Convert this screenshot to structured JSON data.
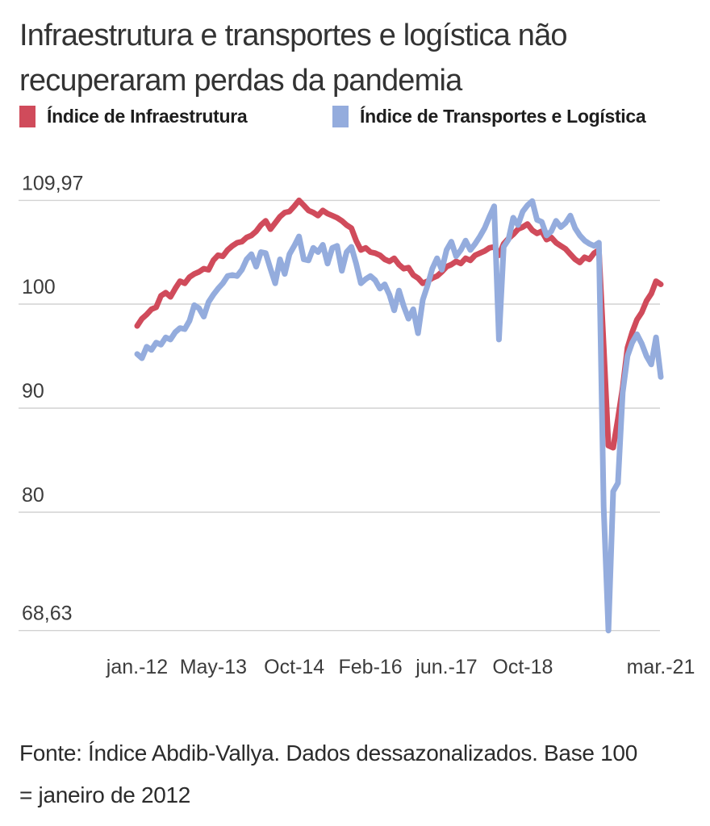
{
  "page": {
    "background": "#ffffff"
  },
  "title": {
    "line1": "Infraestrutura e transportes e logística não",
    "line2": "recuperaram perdas da pandemia"
  },
  "legend": {
    "items": [
      {
        "label": "Índice de Infraestrutura",
        "color": "#d04b5b"
      },
      {
        "label": "Índice de Transportes e Logística",
        "color": "#94acdd"
      }
    ]
  },
  "source": {
    "line1": "Fonte: Índice Abdib-Vallya. Dados dessazonalizados. Base 100",
    "line2": "= janeiro de 2012"
  },
  "chart_data": {
    "type": "line",
    "title": "Infraestrutura e transportes e logística não recuperaram perdas da pandemia",
    "x_unit": "month",
    "x_start": "2012-01",
    "x_end": "2021-03",
    "n_points": 111,
    "grid": true,
    "legend_position": "top",
    "ylim": [
      68.63,
      109.97
    ],
    "grid_color": "#d2d2d2",
    "tick_color": "#3c3c3c",
    "y_ticks": [
      {
        "label": "109,97",
        "value": 109.97
      },
      {
        "label": "100",
        "value": 100
      },
      {
        "label": "90",
        "value": 90
      },
      {
        "label": "80",
        "value": 80
      },
      {
        "label": "68,63",
        "value": 68.63
      }
    ],
    "x_ticks": [
      {
        "label": "jan.-12",
        "m": 0
      },
      {
        "label": "May-13",
        "m": 16
      },
      {
        "label": "Oct-14",
        "m": 33
      },
      {
        "label": "Feb-16",
        "m": 49
      },
      {
        "label": "jun.-17",
        "m": 65
      },
      {
        "label": "Oct-18",
        "m": 81
      },
      {
        "label": "mar.-21",
        "m": 110
      }
    ],
    "series": [
      {
        "name": "Índice de Infraestrutura",
        "color": "#d04b5b",
        "values": [
          97.9,
          98.6,
          99.0,
          99.5,
          99.7,
          100.8,
          101.1,
          100.7,
          101.5,
          102.2,
          102.0,
          102.6,
          102.9,
          103.1,
          103.4,
          103.3,
          104.2,
          104.7,
          104.6,
          105.2,
          105.6,
          105.9,
          106.0,
          106.4,
          106.6,
          107.0,
          107.6,
          108.0,
          107.2,
          107.8,
          108.4,
          108.8,
          108.9,
          109.4,
          109.97,
          109.5,
          109.0,
          108.8,
          108.5,
          109.0,
          108.7,
          108.5,
          108.3,
          108.0,
          107.6,
          107.3,
          106.1,
          105.2,
          105.4,
          105.0,
          104.9,
          104.7,
          104.3,
          104.1,
          104.4,
          103.8,
          103.4,
          103.5,
          102.8,
          102.5,
          102.0,
          102.2,
          102.5,
          102.7,
          103.1,
          103.6,
          103.8,
          104.1,
          103.9,
          104.4,
          104.2,
          104.7,
          104.9,
          105.1,
          105.4,
          105.5,
          104.7,
          105.8,
          106.3,
          106.7,
          107.2,
          107.4,
          107.7,
          107.1,
          106.8,
          107.0,
          106.2,
          106.4,
          105.9,
          105.6,
          105.3,
          104.8,
          104.3,
          104.0,
          104.5,
          104.3,
          104.9,
          105.2,
          96.0,
          86.4,
          86.2,
          89.0,
          92.0,
          95.8,
          97.3,
          98.5,
          99.2,
          100.3,
          101.0,
          102.2,
          101.9
        ]
      },
      {
        "name": "Índice de Transportes e Logística",
        "color": "#94acdd",
        "values": [
          95.2,
          94.8,
          95.9,
          95.6,
          96.3,
          96.1,
          96.8,
          96.6,
          97.3,
          97.7,
          97.6,
          98.4,
          99.9,
          99.6,
          98.8,
          100.2,
          100.9,
          101.5,
          102.0,
          102.7,
          102.8,
          102.7,
          103.3,
          104.3,
          104.8,
          103.6,
          105.0,
          104.9,
          103.4,
          102.0,
          104.3,
          102.9,
          104.8,
          105.6,
          106.5,
          104.3,
          104.2,
          105.4,
          105.0,
          105.7,
          103.9,
          105.4,
          105.6,
          103.2,
          105.0,
          105.5,
          103.9,
          102.0,
          102.4,
          102.7,
          102.3,
          101.5,
          101.9,
          100.9,
          99.4,
          101.3,
          99.8,
          98.6,
          99.5,
          97.2,
          100.4,
          101.8,
          103.4,
          104.4,
          103.3,
          105.2,
          106.0,
          104.6,
          105.2,
          106.1,
          105.2,
          105.8,
          106.5,
          107.3,
          108.4,
          109.4,
          96.6,
          105.5,
          106.2,
          108.3,
          107.6,
          108.9,
          109.5,
          109.9,
          108.1,
          107.9,
          106.6,
          107.0,
          108.0,
          107.4,
          107.8,
          108.5,
          107.3,
          106.6,
          106.1,
          105.8,
          105.6,
          105.9,
          80.5,
          68.63,
          82.0,
          82.8,
          91.5,
          95.0,
          96.3,
          97.1,
          96.2,
          95.0,
          94.2,
          96.8,
          93.0
        ]
      }
    ]
  }
}
